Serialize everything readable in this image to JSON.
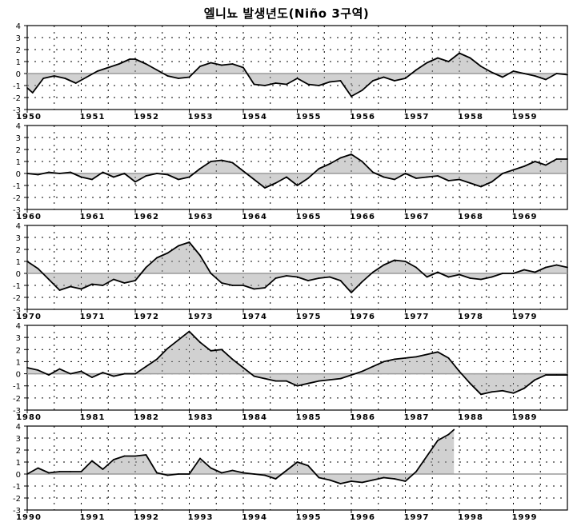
{
  "title": "엘니뇨 발생년도(Niño 3구역)",
  "colors": {
    "line": "#000000",
    "fill": "#9a9a9a",
    "grid": "#000000",
    "frame": "#000000"
  },
  "chart_data": [
    {
      "type": "area",
      "ylim": [
        -3,
        4
      ],
      "yticks": [
        4,
        3,
        2,
        1,
        0,
        -1,
        -2,
        -3
      ],
      "xlim": [
        1950,
        1960
      ],
      "xticks": [
        "1950",
        "1951",
        "1952",
        "1953",
        "1954",
        "1955",
        "1956",
        "1957",
        "1958",
        "1959"
      ],
      "x": [
        1950.0,
        1950.1,
        1950.3,
        1950.5,
        1950.7,
        1950.9,
        1951.1,
        1951.3,
        1951.5,
        1951.7,
        1951.9,
        1952.0,
        1952.2,
        1952.4,
        1952.6,
        1952.8,
        1953.0,
        1953.2,
        1953.4,
        1953.6,
        1953.8,
        1954.0,
        1954.2,
        1954.4,
        1954.6,
        1954.8,
        1955.0,
        1955.2,
        1955.4,
        1955.6,
        1955.8,
        1956.0,
        1956.2,
        1956.4,
        1956.6,
        1956.8,
        1957.0,
        1957.2,
        1957.4,
        1957.6,
        1957.8,
        1958.0,
        1958.2,
        1958.4,
        1958.6,
        1958.8,
        1959.0,
        1959.2,
        1959.4,
        1959.6,
        1959.8,
        1960.0
      ],
      "y": [
        -1.2,
        -1.6,
        -0.4,
        -0.2,
        -0.4,
        -0.8,
        -0.3,
        0.2,
        0.5,
        0.8,
        1.2,
        1.2,
        0.8,
        0.3,
        -0.2,
        -0.4,
        -0.3,
        0.6,
        0.9,
        0.7,
        0.8,
        0.5,
        -0.9,
        -1.0,
        -0.8,
        -0.9,
        -0.4,
        -0.9,
        -1.0,
        -0.7,
        -0.6,
        -1.9,
        -1.4,
        -0.6,
        -0.3,
        -0.6,
        -0.4,
        0.3,
        0.9,
        1.3,
        1.0,
        1.7,
        1.3,
        0.6,
        0.1,
        -0.3,
        0.2,
        0.0,
        -0.2,
        -0.5,
        0.0,
        -0.1
      ]
    },
    {
      "type": "area",
      "ylim": [
        -3,
        4
      ],
      "yticks": [
        4,
        3,
        2,
        1,
        0,
        -1,
        -2,
        -3
      ],
      "xlim": [
        1960,
        1970
      ],
      "xticks": [
        "1960",
        "1961",
        "1962",
        "1963",
        "1964",
        "1965",
        "1966",
        "1967",
        "1968",
        "1969"
      ],
      "x": [
        1960.0,
        1960.2,
        1960.4,
        1960.6,
        1960.8,
        1961.0,
        1961.2,
        1961.4,
        1961.6,
        1961.8,
        1962.0,
        1962.2,
        1962.4,
        1962.6,
        1962.8,
        1963.0,
        1963.2,
        1963.4,
        1963.6,
        1963.8,
        1964.0,
        1964.2,
        1964.4,
        1964.6,
        1964.8,
        1965.0,
        1965.2,
        1965.4,
        1965.6,
        1965.8,
        1966.0,
        1966.2,
        1966.4,
        1966.6,
        1966.8,
        1967.0,
        1967.2,
        1967.4,
        1967.6,
        1967.8,
        1968.0,
        1968.2,
        1968.4,
        1968.6,
        1968.8,
        1969.0,
        1969.2,
        1969.4,
        1969.6,
        1969.8,
        1970.0
      ],
      "y": [
        0.0,
        -0.1,
        0.1,
        0.0,
        0.1,
        -0.3,
        -0.5,
        0.1,
        -0.3,
        0.0,
        -0.7,
        -0.2,
        0.0,
        -0.1,
        -0.5,
        -0.3,
        0.4,
        1.0,
        1.1,
        0.9,
        0.2,
        -0.5,
        -1.2,
        -0.8,
        -0.3,
        -1.0,
        -0.4,
        0.4,
        0.8,
        1.3,
        1.6,
        1.0,
        0.1,
        -0.3,
        -0.5,
        0.0,
        -0.4,
        -0.3,
        -0.2,
        -0.6,
        -0.5,
        -0.8,
        -1.1,
        -0.7,
        0.0,
        0.3,
        0.6,
        1.0,
        0.7,
        1.2,
        1.2
      ]
    },
    {
      "type": "area",
      "ylim": [
        -3,
        4
      ],
      "yticks": [
        4,
        3,
        2,
        1,
        0,
        -1,
        -2,
        -3
      ],
      "xlim": [
        1970,
        1980
      ],
      "xticks": [
        "1970",
        "1971",
        "1972",
        "1973",
        "1974",
        "1975",
        "1976",
        "1977",
        "1978",
        "1979"
      ],
      "x": [
        1970.0,
        1970.2,
        1970.4,
        1970.6,
        1970.8,
        1971.0,
        1971.2,
        1971.4,
        1971.6,
        1971.8,
        1972.0,
        1972.2,
        1972.4,
        1972.6,
        1972.8,
        1973.0,
        1973.2,
        1973.4,
        1973.6,
        1973.8,
        1974.0,
        1974.2,
        1974.4,
        1974.6,
        1974.8,
        1975.0,
        1975.2,
        1975.4,
        1975.6,
        1975.8,
        1976.0,
        1976.2,
        1976.4,
        1976.6,
        1976.8,
        1977.0,
        1977.2,
        1977.4,
        1977.6,
        1977.8,
        1978.0,
        1978.2,
        1978.4,
        1978.6,
        1978.8,
        1979.0,
        1979.2,
        1979.4,
        1979.6,
        1979.8,
        1980.0
      ],
      "y": [
        1.0,
        0.4,
        -0.5,
        -1.4,
        -1.1,
        -1.3,
        -0.9,
        -1.0,
        -0.5,
        -0.8,
        -0.6,
        0.5,
        1.3,
        1.7,
        2.3,
        2.6,
        1.5,
        0.0,
        -0.8,
        -1.0,
        -1.0,
        -1.3,
        -1.2,
        -0.4,
        -0.2,
        -0.3,
        -0.6,
        -0.4,
        -0.3,
        -0.6,
        -1.6,
        -0.7,
        0.1,
        0.7,
        1.1,
        1.0,
        0.5,
        -0.3,
        0.1,
        -0.3,
        -0.1,
        -0.4,
        -0.5,
        -0.3,
        0.0,
        0.0,
        0.3,
        0.1,
        0.5,
        0.7,
        0.5
      ]
    },
    {
      "type": "area",
      "ylim": [
        -3,
        4
      ],
      "yticks": [
        4,
        3,
        2,
        1,
        0,
        -1,
        -2,
        -3
      ],
      "xlim": [
        1980,
        1990
      ],
      "xticks": [
        "1980",
        "1981",
        "1982",
        "1983",
        "1984",
        "1985",
        "1986",
        "1987",
        "1988",
        "1989"
      ],
      "x": [
        1980.0,
        1980.2,
        1980.4,
        1980.6,
        1980.8,
        1981.0,
        1981.2,
        1981.4,
        1981.6,
        1981.8,
        1982.0,
        1982.2,
        1982.4,
        1982.6,
        1982.8,
        1983.0,
        1983.2,
        1983.4,
        1983.6,
        1983.8,
        1984.0,
        1984.2,
        1984.4,
        1984.6,
        1984.8,
        1985.0,
        1985.2,
        1985.4,
        1985.6,
        1985.8,
        1986.0,
        1986.2,
        1986.4,
        1986.6,
        1986.8,
        1987.0,
        1987.2,
        1987.4,
        1987.6,
        1987.8,
        1988.0,
        1988.2,
        1988.4,
        1988.6,
        1988.8,
        1989.0,
        1989.2,
        1989.4,
        1989.6,
        1989.8,
        1990.0
      ],
      "y": [
        0.5,
        0.3,
        -0.1,
        0.4,
        0.0,
        0.2,
        -0.3,
        0.1,
        -0.2,
        0.0,
        0.0,
        0.6,
        1.2,
        2.1,
        2.8,
        3.5,
        2.6,
        1.9,
        2.0,
        1.2,
        0.5,
        -0.2,
        -0.4,
        -0.6,
        -0.6,
        -1.0,
        -0.8,
        -0.6,
        -0.5,
        -0.4,
        -0.1,
        0.2,
        0.6,
        1.0,
        1.2,
        1.3,
        1.4,
        1.6,
        1.8,
        1.3,
        0.2,
        -0.8,
        -1.7,
        -1.5,
        -1.4,
        -1.6,
        -1.2,
        -0.5,
        -0.1,
        -0.1,
        -0.1
      ]
    },
    {
      "type": "area",
      "ylim": [
        -3,
        4
      ],
      "yticks": [
        4,
        3,
        2,
        1,
        0,
        -1,
        -2,
        -3
      ],
      "xlim": [
        1990,
        2000
      ],
      "xticks": [
        "1990",
        "1991",
        "1992",
        "1993",
        "1994",
        "1995",
        "1996",
        "1997",
        "1998",
        "1999"
      ],
      "x": [
        1990.0,
        1990.2,
        1990.4,
        1990.6,
        1990.8,
        1991.0,
        1991.2,
        1991.4,
        1991.6,
        1991.8,
        1992.0,
        1992.2,
        1992.4,
        1992.6,
        1992.8,
        1993.0,
        1993.2,
        1993.4,
        1993.6,
        1993.8,
        1994.0,
        1994.2,
        1994.4,
        1994.6,
        1994.8,
        1995.0,
        1995.2,
        1995.4,
        1995.6,
        1995.8,
        1996.0,
        1996.2,
        1996.4,
        1996.6,
        1996.8,
        1997.0,
        1997.2,
        1997.4,
        1997.6,
        1997.8,
        1997.9
      ],
      "y": [
        0.0,
        0.5,
        0.1,
        0.2,
        0.2,
        0.2,
        1.1,
        0.4,
        1.2,
        1.5,
        1.5,
        1.6,
        0.1,
        -0.1,
        0.0,
        0.0,
        1.3,
        0.5,
        0.1,
        0.3,
        0.1,
        0.0,
        -0.1,
        -0.4,
        0.3,
        1.0,
        0.7,
        -0.3,
        -0.5,
        -0.8,
        -0.6,
        -0.7,
        -0.5,
        -0.3,
        -0.4,
        -0.6,
        0.2,
        1.5,
        2.8,
        3.3,
        3.7
      ]
    }
  ]
}
